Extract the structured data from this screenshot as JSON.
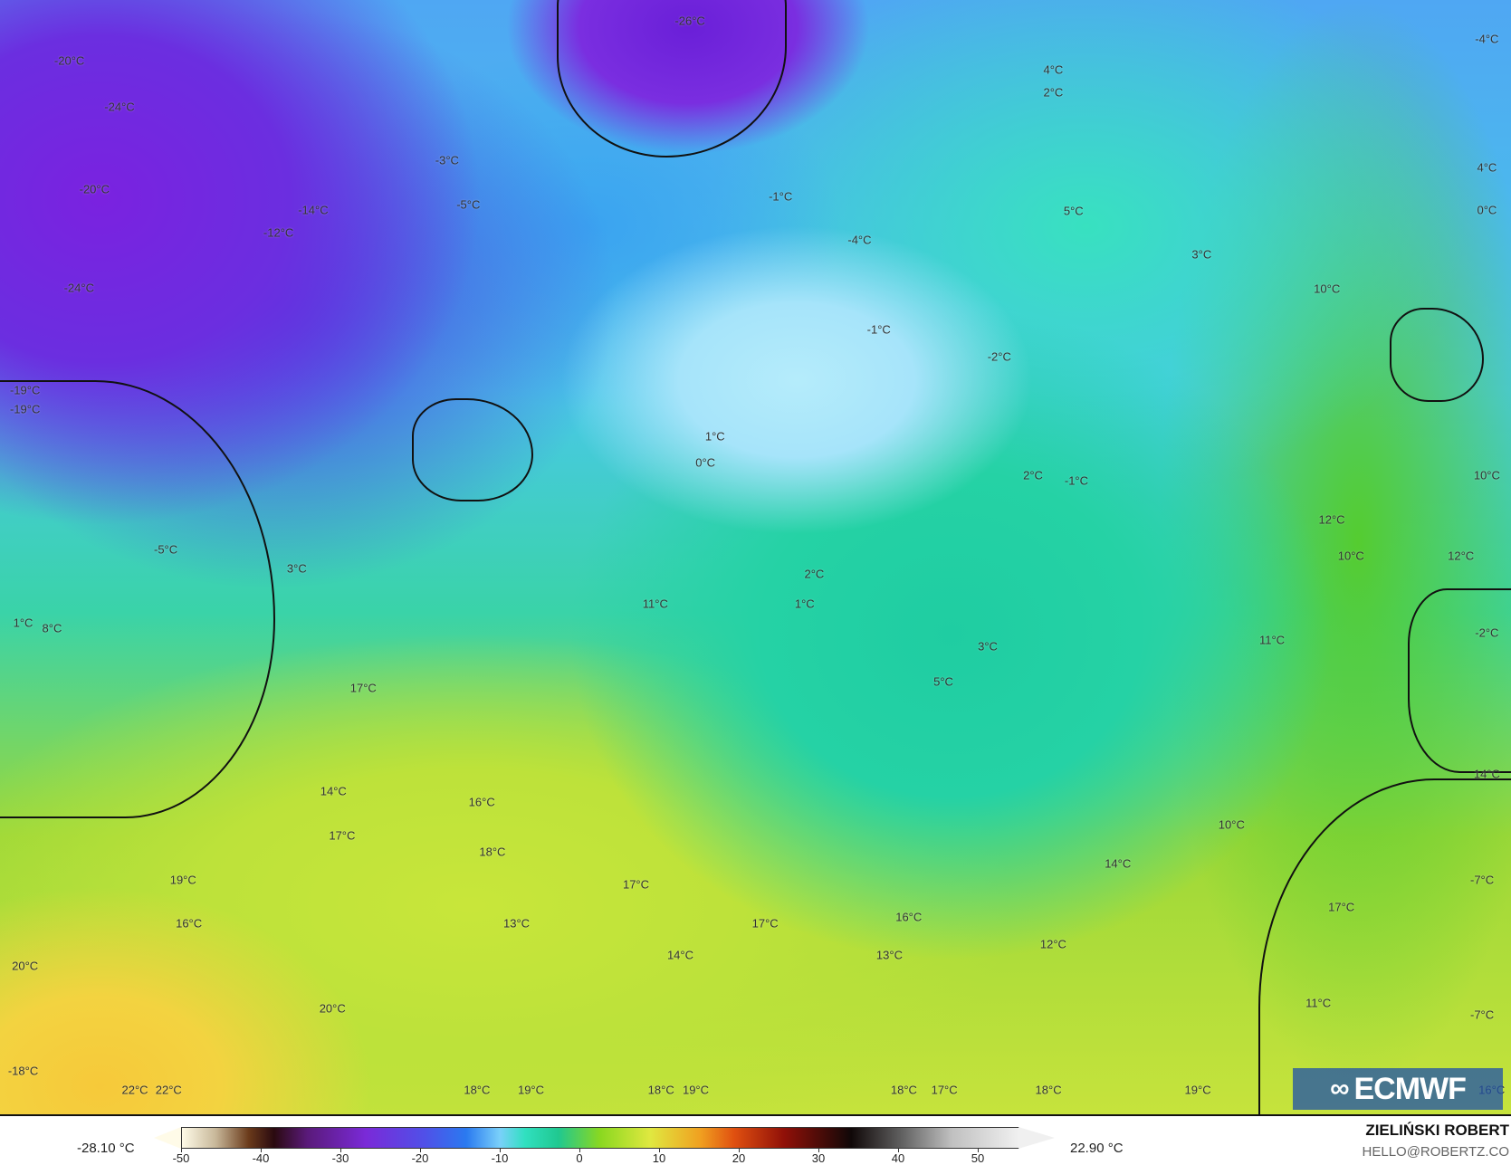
{
  "map": {
    "title_units": "°C",
    "labels": [
      "-26°C",
      "-4°C",
      "-20°C",
      "4°C",
      "2°C",
      "-24°C",
      "-3°C",
      "4°C",
      "-20°C",
      "-1°C",
      "-5°C",
      "-14°C",
      "5°C",
      "0°C",
      "-12°C",
      "-4°C",
      "3°C",
      "-24°C",
      "10°C",
      "-1°C",
      "-2°C",
      "-19°C",
      "-19°C",
      "1°C",
      "0°C",
      "2°C",
      "-1°C",
      "10°C",
      "12°C",
      "-5°C",
      "10°C",
      "12°C",
      "3°C",
      "2°C",
      "11°C",
      "1°C",
      "1°C",
      "8°C",
      "-2°C",
      "11°C",
      "3°C",
      "5°C",
      "17°C",
      "14°C",
      "14°C",
      "16°C",
      "10°C",
      "17°C",
      "18°C",
      "14°C",
      "19°C",
      "17°C",
      "-7°C",
      "17°C",
      "16°C",
      "16°C",
      "13°C",
      "17°C",
      "12°C",
      "14°C",
      "13°C",
      "20°C",
      "20°C",
      "11°C",
      "-7°C",
      "-18°C",
      "22°C",
      "22°C",
      "18°C",
      "19°C",
      "18°C",
      "19°C",
      "18°C",
      "17°C",
      "18°C",
      "19°C",
      "16°C"
    ]
  },
  "logo": {
    "text": "ECMWF"
  },
  "colorbar": {
    "min_label": "-28.10 °C",
    "max_label": "22.90 °C",
    "ticks": [
      "-50",
      "-40",
      "-30",
      "-20",
      "-10",
      "0",
      "10",
      "20",
      "30",
      "40",
      "50"
    ],
    "range": [
      -50,
      55
    ],
    "colors": [
      "#fffbe8",
      "#2a0a10",
      "#7a2ad8",
      "#2a7af0",
      "#30e0c0",
      "#8ad820",
      "#e0e840",
      "#e05010",
      "#100808",
      "#f0f0f0"
    ]
  },
  "credit": {
    "name": "ZIELIŃSKI ROBERT",
    "email": "HELLO@ROBERTZ.CO"
  }
}
